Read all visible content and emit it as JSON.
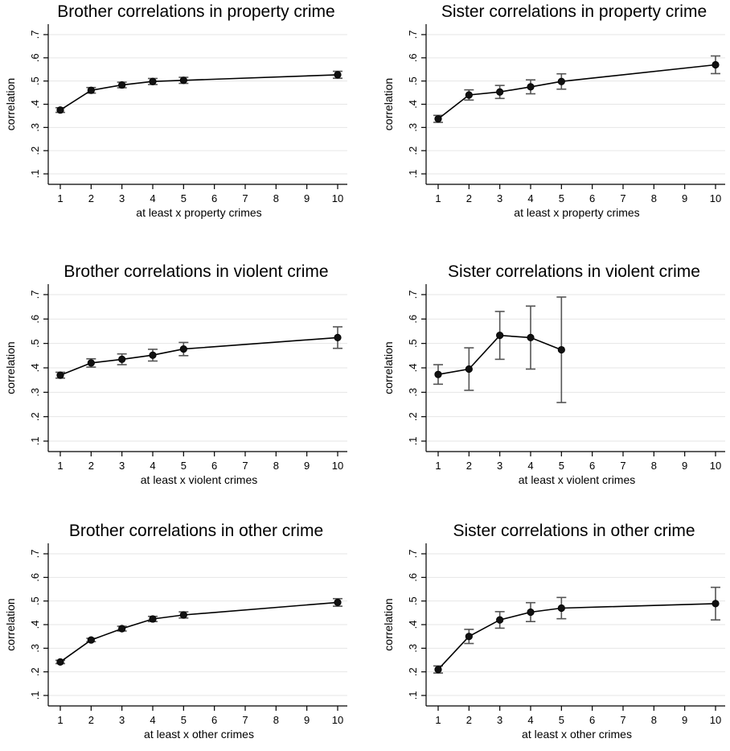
{
  "chart_data": [
    {
      "type": "line",
      "title": "Brother correlations in property crime",
      "xlabel": "at least x property crimes",
      "ylabel": "correlation",
      "x_ticks": [
        1,
        2,
        3,
        4,
        5,
        6,
        7,
        8,
        9,
        10
      ],
      "y_ticks": [
        0.1,
        0.2,
        0.3,
        0.4,
        0.5,
        0.6,
        0.7
      ],
      "y_tick_labels": [
        ".1",
        ".2",
        ".3",
        ".4",
        ".5",
        ".6",
        ".7"
      ],
      "xlim": [
        1,
        10
      ],
      "ylim": [
        0.1,
        0.7
      ],
      "grid": "horizontal",
      "x": [
        1,
        2,
        3,
        4,
        5,
        10
      ],
      "y": [
        0.375,
        0.46,
        0.483,
        0.498,
        0.503,
        0.527
      ],
      "ci_low": [
        0.365,
        0.448,
        0.471,
        0.485,
        0.49,
        0.512
      ],
      "ci_high": [
        0.385,
        0.472,
        0.495,
        0.511,
        0.516,
        0.542
      ]
    },
    {
      "type": "line",
      "title": "Sister correlations in property crime",
      "xlabel": "at least x property crimes",
      "ylabel": "correlation",
      "x_ticks": [
        1,
        2,
        3,
        4,
        5,
        6,
        7,
        8,
        9,
        10
      ],
      "y_ticks": [
        0.1,
        0.2,
        0.3,
        0.4,
        0.5,
        0.6,
        0.7
      ],
      "y_tick_labels": [
        ".1",
        ".2",
        ".3",
        ".4",
        ".5",
        ".6",
        ".7"
      ],
      "xlim": [
        1,
        10
      ],
      "ylim": [
        0.1,
        0.7
      ],
      "grid": "horizontal",
      "x": [
        1,
        2,
        3,
        4,
        5,
        10
      ],
      "y": [
        0.337,
        0.44,
        0.453,
        0.475,
        0.498,
        0.57
      ],
      "ci_low": [
        0.322,
        0.418,
        0.425,
        0.445,
        0.465,
        0.532
      ],
      "ci_high": [
        0.352,
        0.462,
        0.481,
        0.505,
        0.531,
        0.608
      ]
    },
    {
      "type": "line",
      "title": "Brother correlations in violent crime",
      "xlabel": "at least x violent crimes",
      "ylabel": "correlation",
      "x_ticks": [
        1,
        2,
        3,
        4,
        5,
        6,
        7,
        8,
        9,
        10
      ],
      "y_ticks": [
        0.1,
        0.2,
        0.3,
        0.4,
        0.5,
        0.6,
        0.7
      ],
      "y_tick_labels": [
        ".1",
        ".2",
        ".3",
        ".4",
        ".5",
        ".6",
        ".7"
      ],
      "xlim": [
        1,
        10
      ],
      "ylim": [
        0.1,
        0.7
      ],
      "grid": "horizontal",
      "x": [
        1,
        2,
        3,
        4,
        5,
        10
      ],
      "y": [
        0.37,
        0.42,
        0.435,
        0.452,
        0.477,
        0.524
      ],
      "ci_low": [
        0.358,
        0.403,
        0.413,
        0.428,
        0.45,
        0.48
      ],
      "ci_high": [
        0.382,
        0.437,
        0.457,
        0.476,
        0.504,
        0.568
      ]
    },
    {
      "type": "line",
      "title": "Sister correlations in violent crime",
      "xlabel": "at least x violent crimes",
      "ylabel": "correlation",
      "x_ticks": [
        1,
        2,
        3,
        4,
        5,
        6,
        7,
        8,
        9,
        10
      ],
      "y_ticks": [
        0.1,
        0.2,
        0.3,
        0.4,
        0.5,
        0.6,
        0.7
      ],
      "y_tick_labels": [
        ".1",
        ".2",
        ".3",
        ".4",
        ".5",
        ".6",
        ".7"
      ],
      "xlim": [
        1,
        10
      ],
      "ylim": [
        0.1,
        0.7
      ],
      "grid": "horizontal",
      "x": [
        1,
        2,
        3,
        4,
        5
      ],
      "y": [
        0.373,
        0.395,
        0.533,
        0.524,
        0.474
      ],
      "ci_low": [
        0.333,
        0.308,
        0.435,
        0.395,
        0.258
      ],
      "ci_high": [
        0.413,
        0.482,
        0.631,
        0.653,
        0.69
      ]
    },
    {
      "type": "line",
      "title": "Brother correlations in other crime",
      "xlabel": "at least x other crimes",
      "ylabel": "correlation",
      "x_ticks": [
        1,
        2,
        3,
        4,
        5,
        6,
        7,
        8,
        9,
        10
      ],
      "y_ticks": [
        0.1,
        0.2,
        0.3,
        0.4,
        0.5,
        0.6,
        0.7
      ],
      "y_tick_labels": [
        ".1",
        ".2",
        ".3",
        ".4",
        ".5",
        ".6",
        ".7"
      ],
      "xlim": [
        1,
        10
      ],
      "ylim": [
        0.1,
        0.7
      ],
      "grid": "horizontal",
      "x": [
        1,
        2,
        3,
        4,
        5,
        10
      ],
      "y": [
        0.242,
        0.335,
        0.383,
        0.424,
        0.441,
        0.494
      ],
      "ci_low": [
        0.235,
        0.328,
        0.373,
        0.413,
        0.428,
        0.478
      ],
      "ci_high": [
        0.249,
        0.342,
        0.393,
        0.435,
        0.454,
        0.51
      ]
    },
    {
      "type": "line",
      "title": "Sister correlations in other crime",
      "xlabel": "at least x other crimes",
      "ylabel": "correlation",
      "x_ticks": [
        1,
        2,
        3,
        4,
        5,
        6,
        7,
        8,
        9,
        10
      ],
      "y_ticks": [
        0.1,
        0.2,
        0.3,
        0.4,
        0.5,
        0.6,
        0.7
      ],
      "y_tick_labels": [
        ".1",
        ".2",
        ".3",
        ".4",
        ".5",
        ".6",
        ".7"
      ],
      "xlim": [
        1,
        10
      ],
      "ylim": [
        0.1,
        0.7
      ],
      "grid": "horizontal",
      "x": [
        1,
        2,
        3,
        4,
        5,
        10
      ],
      "y": [
        0.21,
        0.35,
        0.42,
        0.453,
        0.47,
        0.489
      ],
      "ci_low": [
        0.195,
        0.32,
        0.385,
        0.413,
        0.425,
        0.42
      ],
      "ci_high": [
        0.225,
        0.38,
        0.455,
        0.493,
        0.515,
        0.558
      ]
    }
  ]
}
